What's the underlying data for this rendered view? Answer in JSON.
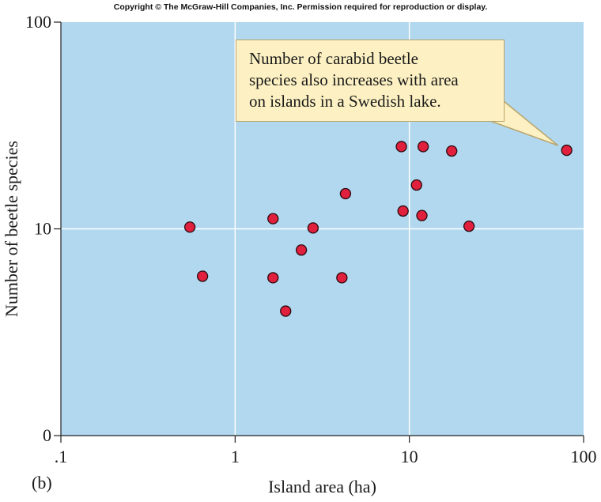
{
  "copyright": "Copyright © The McGraw-Hill Companies, Inc. Permission required for reproduction or display.",
  "panel_label": "(b)",
  "colors": {
    "plot_background": "#b1d8ef",
    "grid": "#ffffff",
    "point_fill": "#e0203c",
    "point_stroke": "#2a0a10",
    "callout_fill": "#fdf1c3",
    "callout_border": "#b9a46a"
  },
  "chart_data": {
    "type": "scatter",
    "title": "",
    "xlabel": "Island area (ha)",
    "ylabel": "Number of beetle species",
    "x_scale": "log",
    "y_scale": "log",
    "xlim": [
      0.1,
      100
    ],
    "x_ticks": [
      {
        "value": 0.1,
        "label": ".1"
      },
      {
        "value": 1,
        "label": "1"
      },
      {
        "value": 10,
        "label": "10"
      },
      {
        "value": 100,
        "label": "100"
      }
    ],
    "y_ticks": [
      {
        "value": 0,
        "label": "0"
      },
      {
        "value": 10,
        "label": "10"
      },
      {
        "value": 100,
        "label": "100"
      }
    ],
    "grid": true,
    "annotation": {
      "lines": [
        "Number of carabid beetle",
        "species also increases with area",
        "on islands in a Swedish lake."
      ],
      "points_to": {
        "x": 80,
        "y": 24
      }
    },
    "points": [
      {
        "x": 0.55,
        "y": 10.2
      },
      {
        "x": 0.65,
        "y": 5.9
      },
      {
        "x": 1.65,
        "y": 11.2
      },
      {
        "x": 1.65,
        "y": 5.8
      },
      {
        "x": 1.95,
        "y": 4.0
      },
      {
        "x": 2.4,
        "y": 7.9
      },
      {
        "x": 2.8,
        "y": 10.1
      },
      {
        "x": 4.1,
        "y": 5.8
      },
      {
        "x": 4.3,
        "y": 14.8
      },
      {
        "x": 9.0,
        "y": 25.0
      },
      {
        "x": 9.2,
        "y": 12.2
      },
      {
        "x": 11.0,
        "y": 16.3
      },
      {
        "x": 11.8,
        "y": 11.6
      },
      {
        "x": 12.0,
        "y": 25.0
      },
      {
        "x": 17.5,
        "y": 23.8
      },
      {
        "x": 22.0,
        "y": 10.3
      },
      {
        "x": 80.0,
        "y": 24.0
      }
    ]
  }
}
